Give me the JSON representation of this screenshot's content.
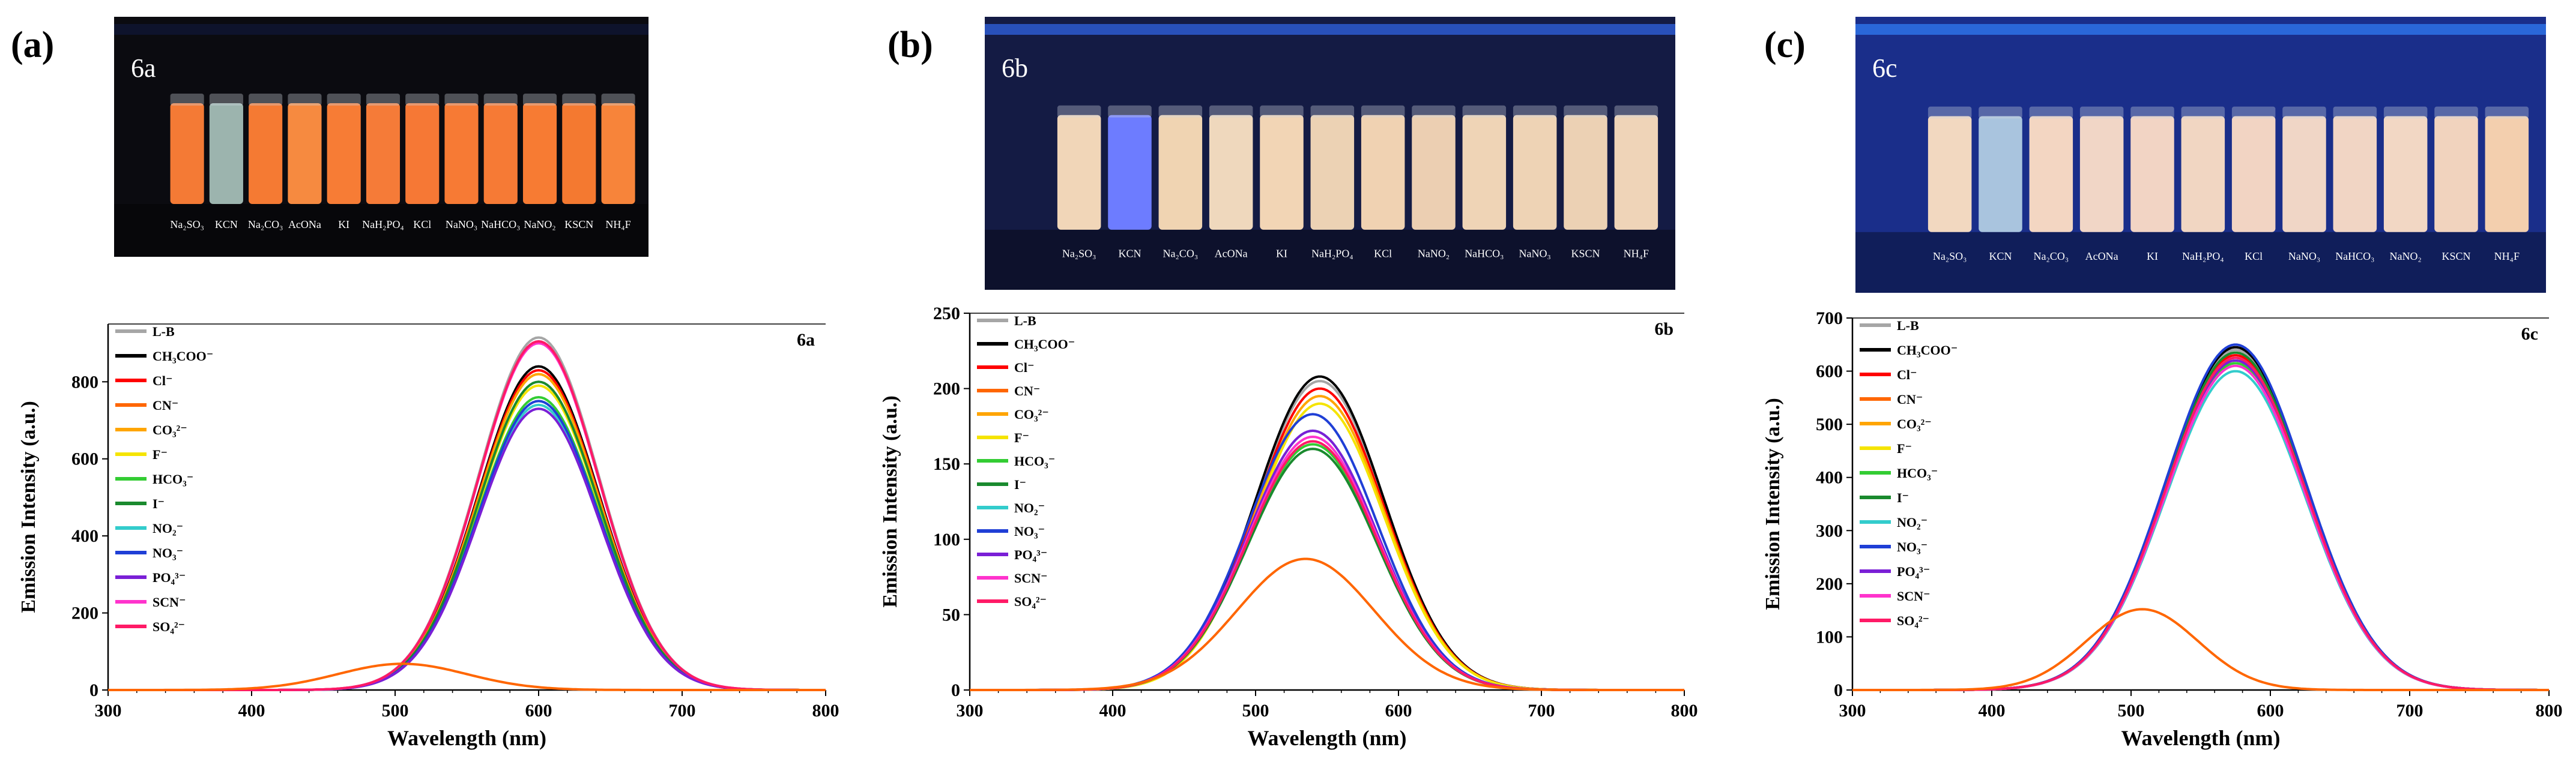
{
  "figure_labels": [
    "(a)",
    "(b)",
    "(c)"
  ],
  "photos": [
    {
      "tag": "6a",
      "bg": "#0b0b10",
      "bar": "#0e1430",
      "vial_labels": [
        "Na₂SO₃",
        "KCN",
        "Na₂CO₃",
        "AcONa",
        "KI",
        "NaH₂PO₄",
        "KCl",
        "NaNO₃",
        "NaHCO₃",
        "NaNO₂",
        "KSCN",
        "NH₄F"
      ],
      "vial_colors": [
        "#f47a35",
        "#9cb4ae",
        "#f57a33",
        "#f68a40",
        "#f77c35",
        "#f57b38",
        "#f67835",
        "#f77a34",
        "#f67a35",
        "#f77b33",
        "#f47930",
        "#f7843a"
      ]
    },
    {
      "tag": "6b",
      "bg": "#141b44",
      "bar": "#2a57c8",
      "vial_labels": [
        "Na₂SO₃",
        "KCN",
        "Na₂CO₃",
        "AcONa",
        "KI",
        "NaH₂PO₄",
        "KCl",
        "NaNO₂",
        "NaHCO₃",
        "NaNO₃",
        "KSCN",
        "NH₄F"
      ],
      "vial_colors": [
        "#f1d6b8",
        "#6d7cff",
        "#f0d4b2",
        "#efd8bd",
        "#f2d5b5",
        "#ecd2b4",
        "#f0d2b2",
        "#eccfb2",
        "#efd4b6",
        "#eed3b5",
        "#ecd1b4",
        "#efd4b8"
      ]
    },
    {
      "tag": "6c",
      "bg": "#1a2e8a",
      "bar": "#2c6ee0",
      "vial_labels": [
        "Na₂SO₃",
        "KCN",
        "Na₂CO₃",
        "AcONa",
        "KI",
        "NaH₂PO₄",
        "KCl",
        "NaNO₃",
        "NaHCO₃",
        "NaNO₂",
        "KSCN",
        "NH₄F"
      ],
      "vial_colors": [
        "#f2d8c0",
        "#a9c4de",
        "#f3d6c2",
        "#f1d6c6",
        "#f2d4c4",
        "#f1d6c2",
        "#f2d4c3",
        "#f0d6c6",
        "#f1d5c4",
        "#f2d7c4",
        "#f1d3be",
        "#f3cfae"
      ]
    }
  ],
  "legend": [
    {
      "name": "L-B",
      "color": "#a6a6a6"
    },
    {
      "name": "CH₃COO⁻",
      "color": "#000000"
    },
    {
      "name": "Cl⁻",
      "color": "#ff0000"
    },
    {
      "name": "CN⁻",
      "color": "#ff6600"
    },
    {
      "name": "CO₃²⁻",
      "color": "#ffa500"
    },
    {
      "name": "F⁻",
      "color": "#f5e400"
    },
    {
      "name": "HCO₃⁻",
      "color": "#33cc33"
    },
    {
      "name": "I⁻",
      "color": "#1a8a2e"
    },
    {
      "name": "NO₂⁻",
      "color": "#33cccc"
    },
    {
      "name": "NO₃⁻",
      "color": "#1f3fd6"
    },
    {
      "name": "PO₄³⁻",
      "color": "#7a1fd6"
    },
    {
      "name": "SCN⁻",
      "color": "#ff33cc"
    },
    {
      "name": "SO₄²⁻",
      "color": "#ff1a66"
    }
  ],
  "chart_data": [
    {
      "type": "line",
      "tag": "6a",
      "xlabel": "Wavelength (nm)",
      "ylabel": "Emission Intensity (a.u.)",
      "xlim": [
        300,
        800
      ],
      "ylim": [
        0,
        950
      ],
      "xticks": [
        300,
        400,
        500,
        600,
        700,
        800
      ],
      "yticks": [
        0,
        200,
        400,
        600,
        800
      ],
      "series": [
        {
          "name": "L-B",
          "peak": 600,
          "max": 915,
          "width": 42
        },
        {
          "name": "CH₃COO⁻",
          "peak": 600,
          "max": 840,
          "width": 42
        },
        {
          "name": "Cl⁻",
          "peak": 600,
          "max": 830,
          "width": 42
        },
        {
          "name": "CN⁻",
          "peak": 505,
          "max": 68,
          "width": 45
        },
        {
          "name": "CO₃²⁻",
          "peak": 600,
          "max": 820,
          "width": 42
        },
        {
          "name": "F⁻",
          "peak": 600,
          "max": 790,
          "width": 42
        },
        {
          "name": "HCO₃⁻",
          "peak": 600,
          "max": 760,
          "width": 42
        },
        {
          "name": "I⁻",
          "peak": 600,
          "max": 800,
          "width": 42
        },
        {
          "name": "NO₂⁻",
          "peak": 600,
          "max": 740,
          "width": 42
        },
        {
          "name": "NO₃⁻",
          "peak": 600,
          "max": 750,
          "width": 42
        },
        {
          "name": "PO₄³⁻",
          "peak": 600,
          "max": 730,
          "width": 42
        },
        {
          "name": "SCN⁻",
          "peak": 600,
          "max": 900,
          "width": 42
        },
        {
          "name": "SO₄²⁻",
          "peak": 600,
          "max": 905,
          "width": 42
        }
      ]
    },
    {
      "type": "line",
      "tag": "6b",
      "xlabel": "Wavelength (nm)",
      "ylabel": "Emission Intensity (a.u.)",
      "xlim": [
        300,
        800
      ],
      "ylim": [
        0,
        250
      ],
      "xticks": [
        300,
        400,
        500,
        600,
        700,
        800
      ],
      "yticks": [
        0,
        50,
        100,
        150,
        200,
        250
      ],
      "series": [
        {
          "name": "L-B",
          "peak": 545,
          "max": 205,
          "width": 45
        },
        {
          "name": "CH₃COO⁻",
          "peak": 545,
          "max": 208,
          "width": 45
        },
        {
          "name": "Cl⁻",
          "peak": 545,
          "max": 200,
          "width": 45
        },
        {
          "name": "CN⁻",
          "peak": 535,
          "max": 87,
          "width": 48
        },
        {
          "name": "CO₃²⁻",
          "peak": 545,
          "max": 195,
          "width": 45
        },
        {
          "name": "F⁻",
          "peak": 545,
          "max": 190,
          "width": 45
        },
        {
          "name": "HCO₃⁻",
          "peak": 540,
          "max": 163,
          "width": 45
        },
        {
          "name": "I⁻",
          "peak": 540,
          "max": 160,
          "width": 45
        },
        {
          "name": "NO₂⁻",
          "peak": 540,
          "max": 172,
          "width": 45
        },
        {
          "name": "NO₃⁻",
          "peak": 540,
          "max": 183,
          "width": 45
        },
        {
          "name": "PO₄³⁻",
          "peak": 540,
          "max": 172,
          "width": 45
        },
        {
          "name": "SCN⁻",
          "peak": 540,
          "max": 168,
          "width": 45
        },
        {
          "name": "SO₄²⁻",
          "peak": 540,
          "max": 165,
          "width": 45
        }
      ]
    },
    {
      "type": "line",
      "tag": "6c",
      "xlabel": "Wavelength (nm)",
      "ylabel": "Emission Intensity (a.u.)",
      "xlim": [
        300,
        800
      ],
      "ylim": [
        0,
        700
      ],
      "xticks": [
        300,
        400,
        500,
        600,
        700,
        800
      ],
      "yticks": [
        0,
        100,
        200,
        300,
        400,
        500,
        600,
        700
      ],
      "series": [
        {
          "name": "L-B",
          "peak": 575,
          "max": 640,
          "width": 50
        },
        {
          "name": "CH₃COO⁻",
          "peak": 575,
          "max": 645,
          "width": 50
        },
        {
          "name": "Cl⁻",
          "peak": 575,
          "max": 630,
          "width": 50
        },
        {
          "name": "CN⁻",
          "peak": 508,
          "max": 152,
          "width": 40
        },
        {
          "name": "CO₃²⁻",
          "peak": 575,
          "max": 620,
          "width": 50
        },
        {
          "name": "F⁻",
          "peak": 575,
          "max": 625,
          "width": 50
        },
        {
          "name": "HCO₃⁻",
          "peak": 575,
          "max": 615,
          "width": 50
        },
        {
          "name": "I⁻",
          "peak": 575,
          "max": 635,
          "width": 50
        },
        {
          "name": "NO₂⁻",
          "peak": 575,
          "max": 600,
          "width": 50
        },
        {
          "name": "NO₃⁻",
          "peak": 575,
          "max": 650,
          "width": 50
        },
        {
          "name": "PO₄³⁻",
          "peak": 575,
          "max": 620,
          "width": 50
        },
        {
          "name": "SCN⁻",
          "peak": 575,
          "max": 610,
          "width": 50
        },
        {
          "name": "SO₄²⁻",
          "peak": 575,
          "max": 625,
          "width": 50
        }
      ]
    }
  ]
}
